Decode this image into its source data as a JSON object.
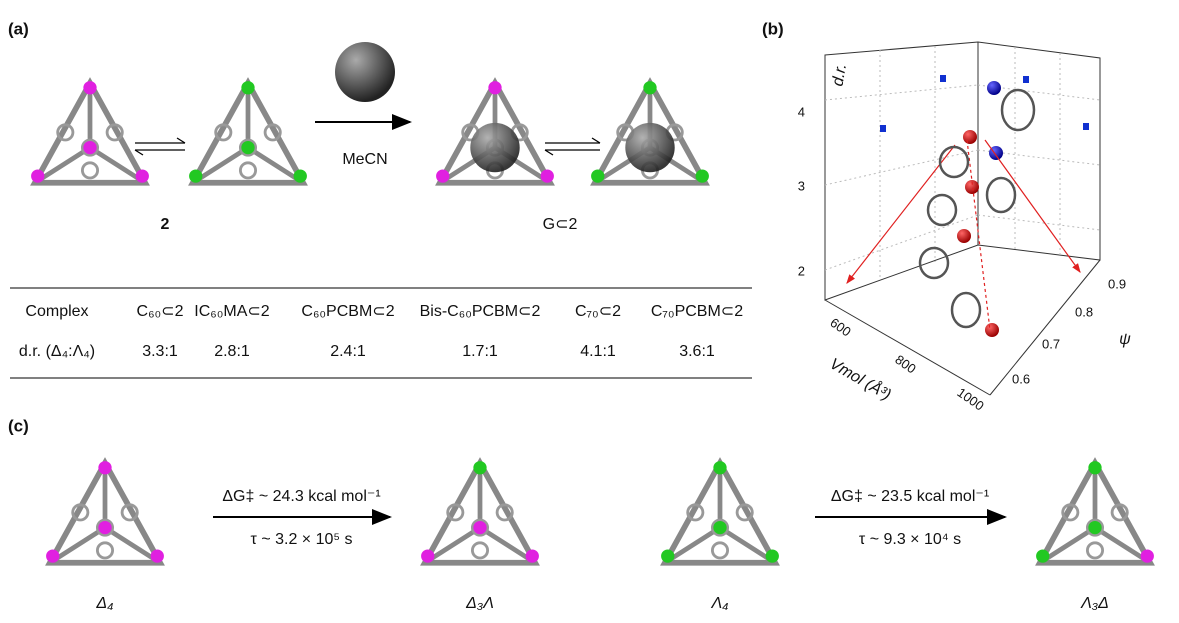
{
  "panels": {
    "a": "(a)",
    "b": "(b)",
    "c": "(c)"
  },
  "panel_a": {
    "host_label": "2",
    "guest_label": "G⊂2",
    "solvent": "MeCN",
    "table": {
      "header": [
        "Complex",
        "C₆₀⊂2",
        "IC₆₀MA⊂2",
        "C₆₀PCBM⊂2",
        "Bis-C₆₀PCBM⊂2",
        "C₇₀⊂2",
        "C₇₀PCBM⊂2"
      ],
      "rows": [
        [
          "d.r. (Δ₄:Λ₄)",
          "3.3:1",
          "2.8:1",
          "2.4:1",
          "1.7:1",
          "4.1:1",
          "3.6:1"
        ]
      ]
    }
  },
  "panel_b": {
    "z_axis": "d.r.",
    "x_axis": "Vmol (Å³)",
    "y_axis": "ψ",
    "z_ticks": [
      "2",
      "3",
      "4"
    ],
    "x_ticks": [
      "600",
      "800",
      "1000"
    ],
    "y_ticks": [
      "0.6",
      "0.7",
      "0.8",
      "0.9"
    ]
  },
  "panel_c": {
    "labels": [
      "Δ₄",
      "Δ₃Λ",
      "Λ₄",
      "Λ₃Δ"
    ],
    "arrows": [
      {
        "top": "ΔG‡ ~ 24.3 kcal mol⁻¹",
        "bottom": "τ ~ 3.2 × 10⁵ s"
      },
      {
        "top": "ΔG‡ ~ 23.5 kcal mol⁻¹",
        "bottom": "τ ~ 9.3 × 10⁴ s"
      }
    ]
  }
}
